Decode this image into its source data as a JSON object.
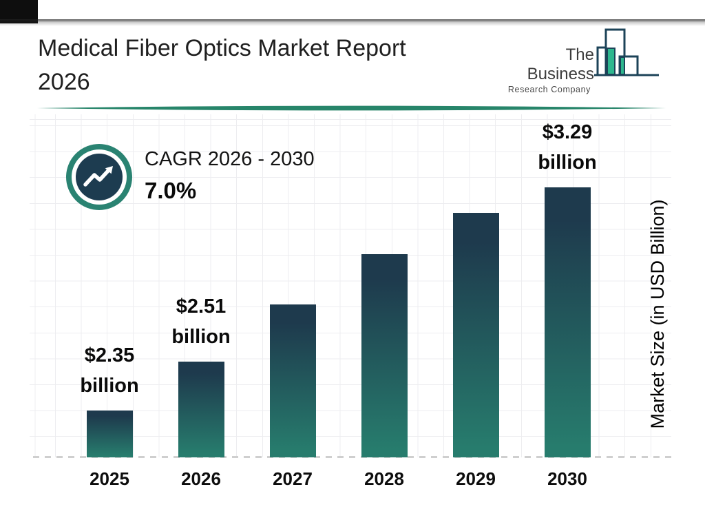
{
  "header": {
    "title_lines": [
      "Medical Fiber Optics Market Report",
      "2026"
    ]
  },
  "logo": {
    "name_top": "The Business",
    "name_sub": "Research Company"
  },
  "cagr_badge": {
    "label": "CAGR 2026 - 2030",
    "value": "7.0%",
    "icon": "trend-up-arrow-icon"
  },
  "chart_data": {
    "type": "bar",
    "title": "Medical Fiber Optics Market Report 2026",
    "categories": [
      "2025",
      "2026",
      "2027",
      "2028",
      "2029",
      "2030"
    ],
    "values_usd_billion": [
      2.35,
      2.51,
      null,
      null,
      null,
      3.29
    ],
    "bar_labels": [
      "$2.35 billion",
      "$2.51 billion",
      "",
      "",
      "",
      "$3.29 billion"
    ],
    "xlabel": "",
    "ylabel": "Market Size (in USD Billion)",
    "cagr_2026_2030_percent": 7.0,
    "grid": true,
    "baseline_style": "dashed",
    "legend": false,
    "bar_gradient": {
      "top": "#1e3a4d",
      "bottom": "#277c6d"
    },
    "bar_height_fractions": [
      0.173,
      0.355,
      0.566,
      0.753,
      0.906,
      1.0
    ]
  },
  "colors": {
    "divider": "#27856a",
    "cagr_ring": "#2a8372",
    "cagr_inner": "#1d3c50",
    "logo_outline": "#1c4358",
    "logo_fill_green": "#2eb78e",
    "grid_line": "#ededf0",
    "baseline_dash": "#cfcfcf",
    "text_primary": "#111111"
  }
}
